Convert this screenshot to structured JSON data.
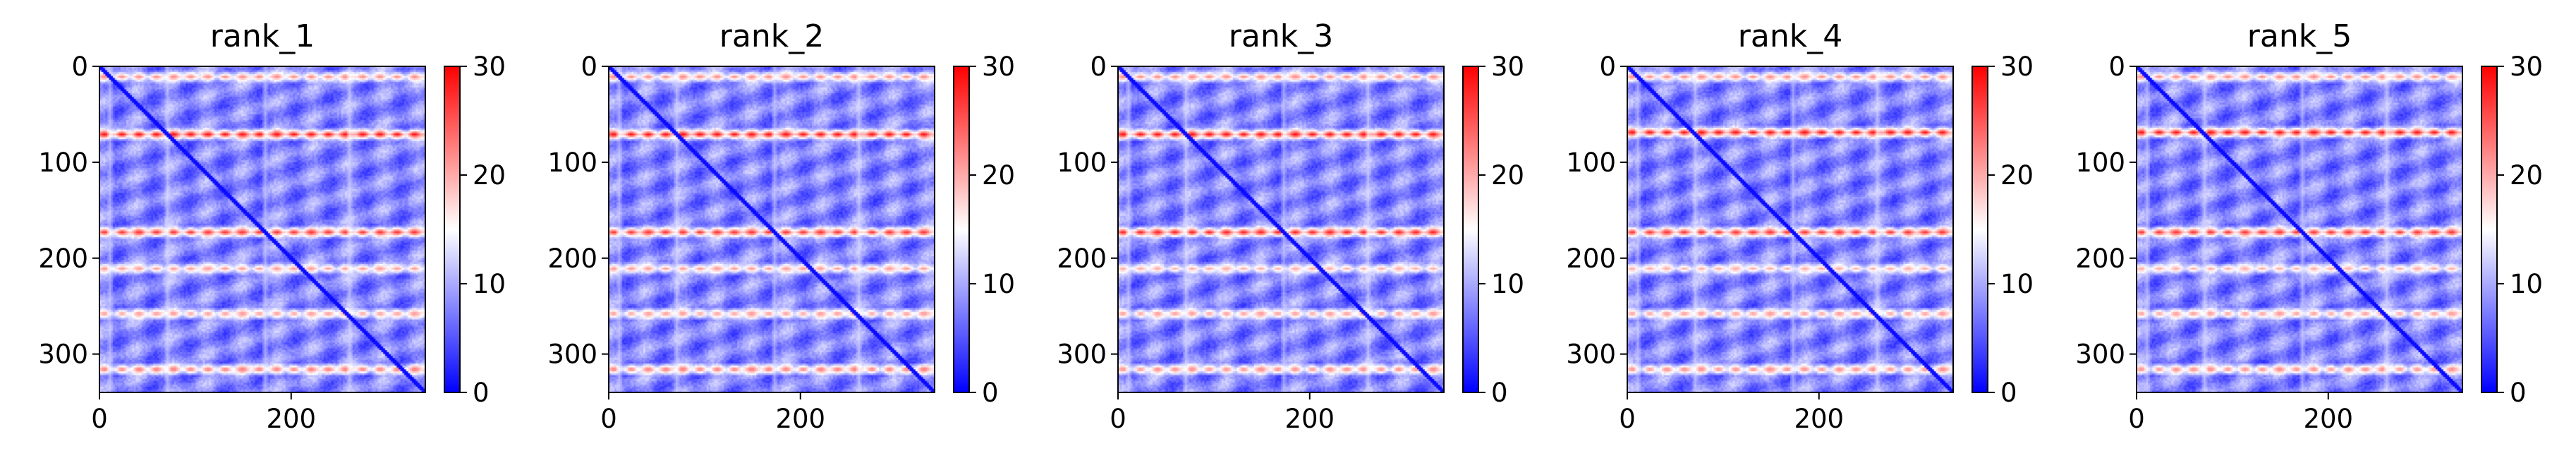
{
  "colors": {
    "cmap_low": "#0000ff",
    "cmap_mid": "#ffffff",
    "cmap_high": "#ff0000",
    "diagonal": "#0a10ff"
  },
  "chart_data": [
    {
      "type": "heatmap",
      "title": "rank_1",
      "size": 340,
      "xticks": [
        0,
        200
      ],
      "yticks": [
        0,
        100,
        200,
        300
      ],
      "x_tick_labels": [
        "0",
        "200"
      ],
      "y_tick_labels": [
        "0",
        "100",
        "200",
        "300"
      ],
      "colorbar": {
        "range": [
          0,
          30
        ],
        "ticks": [
          "0",
          "10",
          "20",
          "30"
        ]
      },
      "high_bands": [
        {
          "row": 10,
          "value": 22
        },
        {
          "row": 70,
          "value": 29
        },
        {
          "row": 172,
          "value": 27
        },
        {
          "row": 210,
          "value": 21
        },
        {
          "row": 257,
          "value": 22
        },
        {
          "row": 315,
          "value": 24
        }
      ],
      "light_columns": [
        10,
        70,
        172,
        260
      ]
    },
    {
      "type": "heatmap",
      "title": "rank_2",
      "size": 340,
      "xticks": [
        0,
        200
      ],
      "yticks": [
        0,
        100,
        200,
        300
      ],
      "x_tick_labels": [
        "0",
        "200"
      ],
      "y_tick_labels": [
        "0",
        "100",
        "200",
        "300"
      ],
      "colorbar": {
        "range": [
          0,
          30
        ],
        "ticks": [
          "0",
          "10",
          "20",
          "30"
        ]
      },
      "high_bands": [
        {
          "row": 10,
          "value": 22
        },
        {
          "row": 70,
          "value": 29
        },
        {
          "row": 172,
          "value": 27
        },
        {
          "row": 210,
          "value": 21
        },
        {
          "row": 257,
          "value": 22
        },
        {
          "row": 315,
          "value": 24
        }
      ],
      "light_columns": [
        10,
        70,
        172,
        260
      ]
    },
    {
      "type": "heatmap",
      "title": "rank_3",
      "size": 340,
      "xticks": [
        0,
        200
      ],
      "yticks": [
        0,
        100,
        200,
        300
      ],
      "x_tick_labels": [
        "0",
        "200"
      ],
      "y_tick_labels": [
        "0",
        "100",
        "200",
        "300"
      ],
      "colorbar": {
        "range": [
          0,
          30
        ],
        "ticks": [
          "0",
          "10",
          "20",
          "30"
        ]
      },
      "high_bands": [
        {
          "row": 10,
          "value": 22
        },
        {
          "row": 70,
          "value": 29
        },
        {
          "row": 172,
          "value": 28
        },
        {
          "row": 210,
          "value": 20
        },
        {
          "row": 257,
          "value": 22
        },
        {
          "row": 315,
          "value": 23
        }
      ],
      "light_columns": [
        10,
        70,
        172,
        260
      ]
    },
    {
      "type": "heatmap",
      "title": "rank_4",
      "size": 340,
      "xticks": [
        0,
        200
      ],
      "yticks": [
        0,
        100,
        200,
        300
      ],
      "x_tick_labels": [
        "0",
        "200"
      ],
      "y_tick_labels": [
        "0",
        "100",
        "200",
        "300"
      ],
      "colorbar": {
        "range": [
          0,
          30
        ],
        "ticks": [
          "0",
          "10",
          "20",
          "30"
        ]
      },
      "high_bands": [
        {
          "row": 10,
          "value": 22
        },
        {
          "row": 68,
          "value": 29
        },
        {
          "row": 172,
          "value": 27
        },
        {
          "row": 210,
          "value": 20
        },
        {
          "row": 257,
          "value": 22
        },
        {
          "row": 315,
          "value": 23
        }
      ],
      "light_columns": [
        10,
        70,
        172,
        260
      ]
    },
    {
      "type": "heatmap",
      "title": "rank_5",
      "size": 340,
      "xticks": [
        0,
        200
      ],
      "yticks": [
        0,
        100,
        200,
        300
      ],
      "x_tick_labels": [
        "0",
        "200"
      ],
      "y_tick_labels": [
        "0",
        "100",
        "200",
        "300"
      ],
      "colorbar": {
        "range": [
          0,
          30
        ],
        "ticks": [
          "0",
          "10",
          "20",
          "30"
        ]
      },
      "high_bands": [
        {
          "row": 10,
          "value": 22
        },
        {
          "row": 68,
          "value": 29
        },
        {
          "row": 172,
          "value": 27
        },
        {
          "row": 210,
          "value": 20
        },
        {
          "row": 257,
          "value": 22
        },
        {
          "row": 315,
          "value": 23
        }
      ],
      "light_columns": [
        10,
        70,
        172,
        260
      ]
    }
  ]
}
